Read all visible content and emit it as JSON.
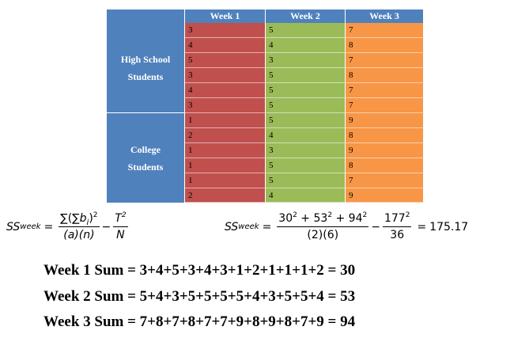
{
  "table": {
    "headers": [
      "Week 1",
      "Week 2",
      "Week 3"
    ],
    "groups": [
      {
        "label_line1": "High School",
        "label_line2": "Students"
      },
      {
        "label_line1": "College",
        "label_line2": "Students"
      }
    ],
    "rows": [
      [
        "3",
        "5",
        "7"
      ],
      [
        "4",
        "4",
        "8"
      ],
      [
        "5",
        "3",
        "7"
      ],
      [
        "3",
        "5",
        "8"
      ],
      [
        "4",
        "5",
        "7"
      ],
      [
        "3",
        "5",
        "7"
      ],
      [
        "1",
        "5",
        "9"
      ],
      [
        "2",
        "4",
        "8"
      ],
      [
        "1",
        "3",
        "9"
      ],
      [
        "1",
        "5",
        "8"
      ],
      [
        "1",
        "5",
        "7"
      ],
      [
        "2",
        "4",
        "9"
      ]
    ],
    "colors": {
      "header": "#4f81bd",
      "week1": "#c0504d",
      "week2": "#9bbb59",
      "week3": "#f79646"
    }
  },
  "formula_general": {
    "lhs_main": "SS",
    "lhs_sub": "week",
    "eq": "=",
    "num_a": "∑(∑",
    "num_b": "b",
    "num_b_sub": "i",
    "num_c": ")",
    "num_exp": "2",
    "den": "(a)(n)",
    "minus": "−",
    "t_num": "T",
    "t_exp": "2",
    "t_den": "N"
  },
  "formula_computed": {
    "lhs_main": "SS",
    "lhs_sub": "week",
    "eq": "=",
    "n1": "30",
    "n1_exp": "2",
    "plus1": " + 53",
    "n2_exp": "2",
    "plus2": " + 94",
    "n3_exp": "2",
    "den": "(2)(6)",
    "minus": "−",
    "t_num": "177",
    "t_exp": "2",
    "t_den": "36",
    "eq2": "=",
    "result": "175.17"
  },
  "sums": [
    "Week 1 Sum = 3+4+5+3+4+3+1+2+1+1+1+2 = 30",
    "Week 2 Sum = 5+4+3+5+5+5+5+4+3+5+5+4 = 53",
    "Week 3 Sum = 7+8+7+8+7+7+9+8+9+8+7+9 = 94"
  ]
}
